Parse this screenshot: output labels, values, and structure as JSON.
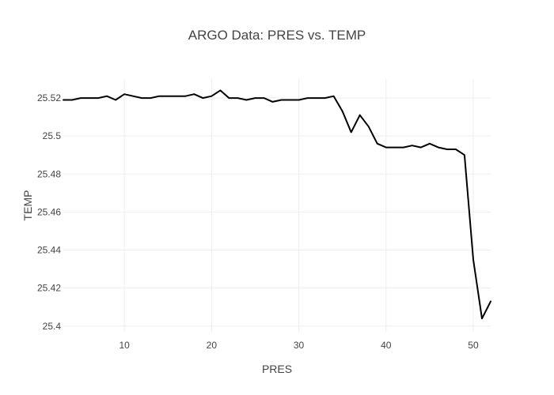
{
  "chart_data": {
    "type": "line",
    "title": "ARGO Data: PRES vs. TEMP",
    "xlabel": "PRES",
    "ylabel": "TEMP",
    "xlim": [
      3,
      52
    ],
    "ylim": [
      25.397,
      25.53
    ],
    "x_ticks": [
      10,
      20,
      30,
      40,
      50
    ],
    "y_ticks": [
      25.4,
      25.42,
      25.44,
      25.46,
      25.48,
      25.5,
      25.52
    ],
    "y_tick_labels": [
      "25.4",
      "25.42",
      "25.44",
      "25.46",
      "25.48",
      "25.5",
      "25.52"
    ],
    "grid": true,
    "legend": false,
    "line_color": "#000000",
    "grid_color": "#eeeeee",
    "series": [
      {
        "x": [
          3,
          4,
          5,
          6,
          7,
          8,
          9,
          10,
          11,
          12,
          13,
          14,
          15,
          16,
          17,
          18,
          19,
          20,
          21,
          22,
          23,
          24,
          25,
          26,
          27,
          28,
          29,
          30,
          31,
          32,
          33,
          34,
          35,
          36,
          37,
          38,
          39,
          40,
          41,
          42,
          43,
          44,
          45,
          46,
          47,
          48,
          49,
          50,
          51,
          52
        ],
        "y": [
          25.519,
          25.519,
          25.52,
          25.52,
          25.52,
          25.521,
          25.519,
          25.522,
          25.521,
          25.52,
          25.52,
          25.521,
          25.521,
          25.521,
          25.521,
          25.522,
          25.52,
          25.521,
          25.524,
          25.52,
          25.52,
          25.519,
          25.52,
          25.52,
          25.518,
          25.519,
          25.519,
          25.519,
          25.52,
          25.52,
          25.52,
          25.521,
          25.513,
          25.502,
          25.511,
          25.505,
          25.496,
          25.494,
          25.494,
          25.494,
          25.495,
          25.494,
          25.496,
          25.494,
          25.493,
          25.493,
          25.49,
          25.435,
          25.404,
          25.413
        ]
      }
    ]
  }
}
